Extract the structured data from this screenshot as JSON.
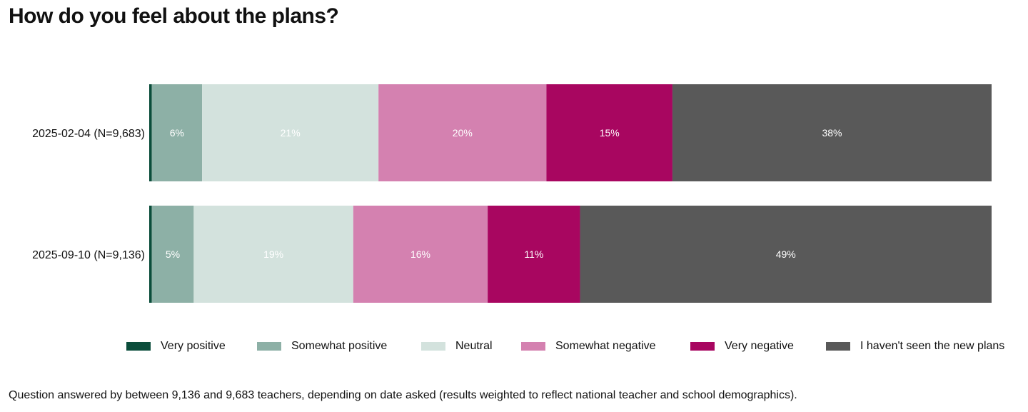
{
  "title": "How do you feel about the plans?",
  "chart_data": {
    "type": "bar",
    "orientation": "horizontal",
    "stacked": true,
    "normalized": true,
    "title": "How do you feel about the plans?",
    "categories": [
      "2025-02-04 (N=9,683)",
      "2025-09-10 (N=9,136)"
    ],
    "series": [
      {
        "name": "Very positive",
        "color": "#0b4d3b",
        "values": [
          0.3,
          0.3
        ],
        "labels": [
          "",
          ""
        ]
      },
      {
        "name": "Somewhat positive",
        "color": "#8db0a6",
        "values": [
          6,
          5
        ],
        "labels": [
          "6%",
          "5%"
        ]
      },
      {
        "name": "Neutral",
        "color": "#d3e2dd",
        "values": [
          21,
          19
        ],
        "labels": [
          "21%",
          "19%"
        ]
      },
      {
        "name": "Somewhat negative",
        "color": "#d481b0",
        "values": [
          20,
          16
        ],
        "labels": [
          "20%",
          "16%"
        ]
      },
      {
        "name": "Very negative",
        "color": "#a80660",
        "values": [
          15,
          11
        ],
        "labels": [
          "15%",
          "11%"
        ]
      },
      {
        "name": "I haven't seen the new plans",
        "color": "#595959",
        "values": [
          38,
          49
        ],
        "labels": [
          "38%",
          "49%"
        ]
      }
    ],
    "legend_position": "bottom",
    "grid": false
  },
  "footnote": "Question answered by between 9,136 and 9,683 teachers, depending on date asked (results weighted to reflect national teacher and school demographics)."
}
